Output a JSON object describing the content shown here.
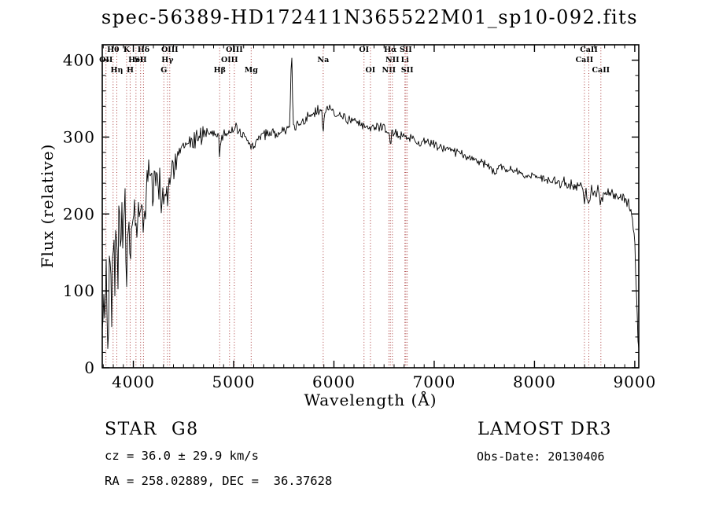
{
  "title": "spec-56389-HD172411N365522M01_sp10-092.fits",
  "axes": {
    "xlabel": "Wavelength (Å)",
    "ylabel": "Flux (relative)",
    "x_range": [
      3690,
      9040
    ],
    "y_range": [
      0,
      420
    ],
    "x_ticks": [
      4000,
      5000,
      6000,
      7000,
      8000,
      9000
    ],
    "y_ticks": [
      0,
      100,
      200,
      300,
      400
    ],
    "x_minor_step": 100,
    "y_minor_step": 20
  },
  "annotations": {
    "object_class": "STAR",
    "subclass": "G8",
    "survey": "LAMOST DR3",
    "cz_line": "cz = 36.0 ± 29.9 km/s",
    "obs_date_line": "Obs-Date: 20130406",
    "ra_dec_line": "RA = 258.02889, DEC =  36.37628"
  },
  "chart_data": {
    "type": "line",
    "title": "spec-56389-HD172411N365522M01_sp10-092.fits",
    "xlabel": "Wavelength (Å)",
    "ylabel": "Flux (relative)",
    "xlim": [
      3690,
      9040
    ],
    "ylim": [
      0,
      420
    ],
    "grid": false,
    "line_color": "#000000",
    "marker_color": "#aa3c3c",
    "marker_label_color": "#1a1a1a",
    "series": [
      {
        "name": "spectrum_envelope",
        "points": [
          [
            3690,
            10
          ],
          [
            3700,
            95
          ],
          [
            3712,
            45
          ],
          [
            3725,
            130
          ],
          [
            3740,
            75
          ],
          [
            3760,
            160
          ],
          [
            3780,
            105
          ],
          [
            3800,
            170
          ],
          [
            3830,
            135
          ],
          [
            3860,
            190
          ],
          [
            3890,
            155
          ],
          [
            3910,
            200
          ],
          [
            3933,
            125
          ],
          [
            3950,
            185
          ],
          [
            3968,
            150
          ],
          [
            4000,
            205
          ],
          [
            4030,
            188
          ],
          [
            4060,
            215
          ],
          [
            4101,
            196
          ],
          [
            4130,
            238
          ],
          [
            4160,
            252
          ],
          [
            4200,
            222
          ],
          [
            4230,
            244
          ],
          [
            4260,
            236
          ],
          [
            4300,
            213
          ],
          [
            4320,
            238
          ],
          [
            4340,
            228
          ],
          [
            4365,
            248
          ],
          [
            4400,
            263
          ],
          [
            4450,
            274
          ],
          [
            4500,
            284
          ],
          [
            4550,
            290
          ],
          [
            4600,
            296
          ],
          [
            4650,
            301
          ],
          [
            4700,
            305
          ],
          [
            4750,
            306
          ],
          [
            4800,
            305
          ],
          [
            4850,
            302
          ],
          [
            4861,
            272
          ],
          [
            4872,
            300
          ],
          [
            4920,
            305
          ],
          [
            4960,
            306
          ],
          [
            5000,
            308
          ],
          [
            5050,
            306
          ],
          [
            5100,
            302
          ],
          [
            5140,
            295
          ],
          [
            5175,
            285
          ],
          [
            5210,
            293
          ],
          [
            5250,
            299
          ],
          [
            5300,
            302
          ],
          [
            5350,
            304
          ],
          [
            5400,
            305
          ],
          [
            5450,
            306
          ],
          [
            5500,
            308
          ],
          [
            5540,
            310
          ],
          [
            5560,
            313
          ],
          [
            5577,
            418
          ],
          [
            5594,
            314
          ],
          [
            5620,
            316
          ],
          [
            5660,
            318
          ],
          [
            5700,
            321
          ],
          [
            5750,
            326
          ],
          [
            5800,
            331
          ],
          [
            5850,
            334
          ],
          [
            5880,
            333
          ],
          [
            5893,
            306
          ],
          [
            5908,
            333
          ],
          [
            5950,
            337
          ],
          [
            6000,
            332
          ],
          [
            6050,
            328
          ],
          [
            6100,
            325
          ],
          [
            6150,
            322
          ],
          [
            6200,
            320
          ],
          [
            6250,
            318
          ],
          [
            6300,
            314
          ],
          [
            6350,
            313
          ],
          [
            6400,
            313
          ],
          [
            6450,
            312
          ],
          [
            6500,
            310
          ],
          [
            6550,
            307
          ],
          [
            6563,
            287
          ],
          [
            6578,
            305
          ],
          [
            6620,
            304
          ],
          [
            6660,
            303
          ],
          [
            6700,
            302
          ],
          [
            6750,
            300
          ],
          [
            6800,
            298
          ],
          [
            6860,
            290
          ],
          [
            6885,
            293
          ],
          [
            6920,
            294
          ],
          [
            6960,
            292
          ],
          [
            7000,
            291
          ],
          [
            7050,
            289
          ],
          [
            7100,
            287
          ],
          [
            7150,
            284
          ],
          [
            7200,
            282
          ],
          [
            7250,
            279
          ],
          [
            7300,
            276
          ],
          [
            7350,
            273
          ],
          [
            7400,
            271
          ],
          [
            7450,
            269
          ],
          [
            7500,
            267
          ],
          [
            7550,
            262
          ],
          [
            7600,
            252
          ],
          [
            7625,
            257
          ],
          [
            7660,
            261
          ],
          [
            7700,
            260
          ],
          [
            7750,
            258
          ],
          [
            7800,
            256
          ],
          [
            7850,
            253
          ],
          [
            7900,
            251
          ],
          [
            7950,
            250
          ],
          [
            8000,
            249
          ],
          [
            8050,
            247
          ],
          [
            8100,
            245
          ],
          [
            8150,
            243
          ],
          [
            8200,
            242
          ],
          [
            8250,
            241
          ],
          [
            8300,
            240
          ],
          [
            8350,
            239
          ],
          [
            8400,
            238
          ],
          [
            8450,
            236
          ],
          [
            8485,
            233
          ],
          [
            8498,
            212
          ],
          [
            8512,
            232
          ],
          [
            8542,
            213
          ],
          [
            8558,
            230
          ],
          [
            8600,
            229
          ],
          [
            8640,
            228
          ],
          [
            8662,
            209
          ],
          [
            8678,
            227
          ],
          [
            8720,
            228
          ],
          [
            8760,
            226
          ],
          [
            8800,
            224
          ],
          [
            8840,
            222
          ],
          [
            8880,
            219
          ],
          [
            8920,
            216
          ],
          [
            8950,
            211
          ],
          [
            8980,
            198
          ],
          [
            9000,
            168
          ],
          [
            9015,
            100
          ],
          [
            9030,
            45
          ],
          [
            9040,
            28
          ]
        ]
      }
    ],
    "spectral_lines": [
      {
        "label": "OII",
        "wavelength": 3727,
        "row": 2
      },
      {
        "label": "Hθ",
        "wavelength": 3798,
        "row": 1
      },
      {
        "label": "Hη",
        "wavelength": 3835,
        "row": 3
      },
      {
        "label": "K",
        "wavelength": 3933,
        "row": 1
      },
      {
        "label": "H",
        "wavelength": 3968,
        "row": 3
      },
      {
        "label": "HeI",
        "wavelength": 4026,
        "row": 2
      },
      {
        "label": "SII",
        "wavelength": 4072,
        "row": 2
      },
      {
        "label": "Hδ",
        "wavelength": 4101,
        "row": 1
      },
      {
        "label": "G",
        "wavelength": 4304,
        "row": 3
      },
      {
        "label": "Hγ",
        "wavelength": 4340,
        "row": 2
      },
      {
        "label": "OIII",
        "wavelength": 4363,
        "row": 1
      },
      {
        "label": "Hβ",
        "wavelength": 4861,
        "row": 3
      },
      {
        "label": "OIII",
        "wavelength": 4959,
        "row": 2
      },
      {
        "label": "OIII",
        "wavelength": 5007,
        "row": 1
      },
      {
        "label": "Mg",
        "wavelength": 5175,
        "row": 3
      },
      {
        "label": "Na",
        "wavelength": 5893,
        "row": 2
      },
      {
        "label": "OI",
        "wavelength": 6300,
        "row": 1
      },
      {
        "label": "OI",
        "wavelength": 6364,
        "row": 3
      },
      {
        "label": "NII",
        "wavelength": 6548,
        "row": 3
      },
      {
        "label": "Hα",
        "wavelength": 6563,
        "row": 1
      },
      {
        "label": "NII",
        "wavelength": 6583,
        "row": 2
      },
      {
        "label": "Li",
        "wavelength": 6708,
        "row": 2
      },
      {
        "label": "SII",
        "wavelength": 6717,
        "row": 1
      },
      {
        "label": "SII",
        "wavelength": 6731,
        "row": 3
      },
      {
        "label": "CaII",
        "wavelength": 8498,
        "row": 2
      },
      {
        "label": "CaII",
        "wavelength": 8542,
        "row": 1
      },
      {
        "label": "CaII",
        "wavelength": 8662,
        "row": 3
      }
    ],
    "rendering": {
      "noise_seed": 42,
      "noise_profile": [
        [
          3690,
          95
        ],
        [
          3750,
          85
        ],
        [
          3800,
          72
        ],
        [
          3850,
          62
        ],
        [
          3900,
          55
        ],
        [
          3950,
          50
        ],
        [
          4000,
          42
        ],
        [
          4100,
          33
        ],
        [
          4200,
          27
        ],
        [
          4300,
          22
        ],
        [
          4400,
          16
        ],
        [
          4500,
          13
        ],
        [
          4600,
          11
        ],
        [
          4800,
          9
        ],
        [
          5000,
          8
        ],
        [
          5300,
          7.5
        ],
        [
          5600,
          7
        ],
        [
          6000,
          6.5
        ],
        [
          6500,
          6
        ],
        [
          7000,
          5.5
        ],
        [
          7500,
          5.5
        ],
        [
          8000,
          6
        ],
        [
          8400,
          7
        ],
        [
          8700,
          8
        ],
        [
          9000,
          9
        ]
      ]
    }
  }
}
